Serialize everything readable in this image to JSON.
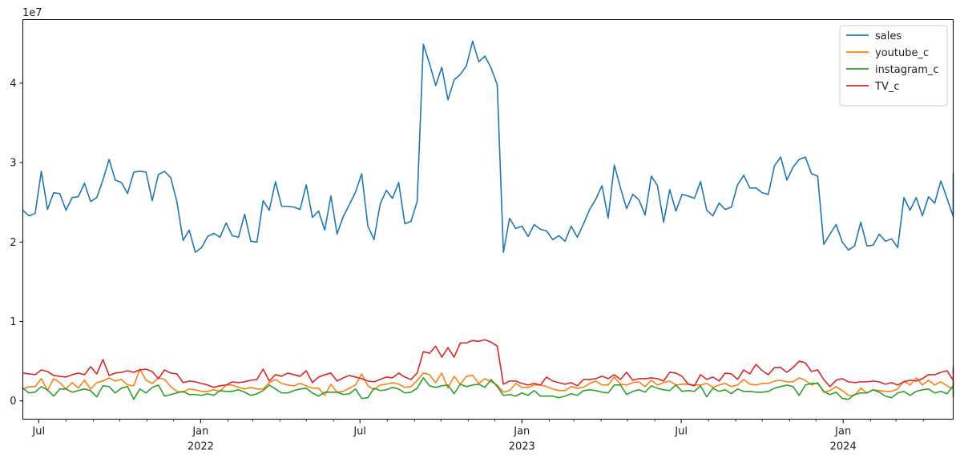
{
  "chart_data": {
    "type": "line",
    "title": "",
    "xlabel": "",
    "ylabel": "",
    "y_offset_text": "1e7",
    "ylim": [
      -2300000,
      48000000
    ],
    "xlim": [
      "2021-06-13",
      "2024-05-05"
    ],
    "y_ticks": [
      {
        "value": 0,
        "label": "0"
      },
      {
        "value": 10000000,
        "label": "1"
      },
      {
        "value": 20000000,
        "label": "2"
      },
      {
        "value": 30000000,
        "label": "3"
      },
      {
        "value": 40000000,
        "label": "4"
      }
    ],
    "x_major_ticks": [
      {
        "date": "2021-07-01",
        "label": "Jul",
        "year": ""
      },
      {
        "date": "2022-01-01",
        "label": "Jan",
        "year": "2022"
      },
      {
        "date": "2022-07-01",
        "label": "Jul",
        "year": ""
      },
      {
        "date": "2023-01-01",
        "label": "Jan",
        "year": "2023"
      },
      {
        "date": "2023-07-01",
        "label": "Jul",
        "year": ""
      },
      {
        "date": "2024-01-01",
        "label": "Jan",
        "year": "2024"
      }
    ],
    "x_minor_ticks": [
      "2021-08-01",
      "2021-09-01",
      "2021-10-01",
      "2021-11-01",
      "2021-12-01",
      "2022-02-01",
      "2022-03-01",
      "2022-04-01",
      "2022-05-01",
      "2022-06-01",
      "2022-08-01",
      "2022-09-01",
      "2022-10-01",
      "2022-11-01",
      "2022-12-01",
      "2023-02-01",
      "2023-03-01",
      "2023-04-01",
      "2023-05-01",
      "2023-06-01",
      "2023-08-01",
      "2023-09-01",
      "2023-10-01",
      "2023-11-01",
      "2023-12-01",
      "2024-02-01",
      "2024-03-01",
      "2024-04-01"
    ],
    "grid": false,
    "legend_position": "top-right",
    "x_start": "2021-06-13",
    "x_freq": "weekly",
    "series": [
      {
        "name": "sales",
        "color": "#1f77b4",
        "values": [
          24.0,
          23.3,
          23.6,
          28.9,
          24.1,
          26.2,
          26.1,
          24.0,
          25.6,
          25.7,
          27.4,
          25.1,
          25.6,
          27.8,
          30.4,
          27.8,
          27.5,
          26.1,
          28.8,
          28.9,
          28.8,
          25.2,
          28.5,
          28.9,
          28.1,
          25.1,
          20.2,
          21.5,
          18.7,
          19.3,
          20.7,
          21.1,
          20.6,
          22.4,
          20.8,
          20.6,
          23.5,
          20.1,
          20.0,
          25.2,
          24.0,
          27.6,
          24.5,
          24.5,
          24.4,
          24.1,
          27.2,
          23.1,
          23.9,
          21.5,
          25.8,
          21.0,
          23.2,
          24.7,
          26.3,
          28.6,
          22.0,
          20.3,
          24.8,
          26.5,
          25.5,
          27.5,
          22.3,
          22.6,
          25.1,
          44.9,
          42.5,
          39.7,
          42.0,
          37.9,
          40.4,
          41.1,
          42.2,
          45.3,
          42.7,
          43.4,
          41.9,
          39.8,
          18.7,
          23.0,
          21.7,
          22.0,
          20.7,
          22.2,
          21.6,
          21.4,
          20.3,
          20.8,
          20.1,
          22.0,
          20.6,
          22.3,
          24.1,
          25.4,
          27.1,
          23.0,
          29.7,
          26.8,
          24.2,
          26.0,
          25.3,
          23.4,
          28.3,
          27.1,
          22.5,
          26.6,
          23.9,
          26.0,
          25.8,
          25.5,
          27.6,
          24.0,
          23.3,
          24.9,
          24.1,
          24.4,
          27.2,
          28.4,
          26.8,
          26.8,
          26.2,
          26.0,
          29.6,
          30.7,
          27.8,
          29.4,
          30.4,
          30.7,
          28.6,
          28.3,
          19.7,
          21.0,
          22.2,
          20.0,
          19.0,
          19.5,
          22.5,
          19.5,
          19.6,
          21.0,
          20.1,
          20.4,
          19.3,
          25.6,
          24.0,
          25.6,
          23.3,
          25.7,
          24.9,
          27.7,
          25.5,
          23.2,
          23.5,
          23.2,
          28.6,
          27.5
        ]
      },
      {
        "name": "youtube_c",
        "color": "#ff7f0e",
        "values": [
          1.5,
          1.8,
          1.8,
          2.8,
          1.3,
          2.8,
          2.3,
          1.5,
          2.3,
          1.6,
          2.6,
          1.5,
          2.3,
          2.5,
          2.9,
          2.5,
          2.7,
          2.0,
          1.9,
          4.0,
          2.6,
          2.2,
          2.9,
          2.7,
          1.8,
          1.2,
          1.1,
          1.5,
          1.4,
          1.2,
          1.2,
          1.4,
          1.2,
          2.0,
          2.0,
          1.7,
          1.5,
          1.7,
          1.5,
          1.5,
          2.3,
          2.7,
          2.2,
          2.0,
          1.9,
          2.2,
          1.9,
          1.6,
          1.6,
          0.7,
          2.1,
          1.1,
          1.2,
          1.6,
          2.0,
          3.4,
          1.9,
          1.4,
          2.0,
          2.1,
          2.3,
          2.1,
          1.7,
          1.8,
          2.6,
          3.5,
          3.3,
          2.3,
          3.5,
          1.6,
          3.1,
          2.1,
          3.1,
          3.2,
          2.2,
          2.8,
          2.4,
          2.0,
          1.1,
          1.3,
          2.2,
          1.7,
          1.7,
          2.0,
          2.0,
          1.8,
          1.5,
          1.3,
          1.3,
          1.8,
          1.6,
          1.7,
          2.2,
          2.5,
          2.0,
          2.0,
          3.0,
          2.1,
          2.0,
          2.3,
          2.4,
          1.8,
          2.6,
          2.0,
          2.3,
          2.5,
          2.0,
          2.1,
          2.1,
          2.0,
          2.0,
          2.2,
          1.7,
          2.0,
          2.2,
          1.8,
          2.0,
          2.7,
          2.1,
          2.0,
          2.2,
          2.2,
          2.5,
          2.6,
          2.4,
          2.4,
          2.9,
          2.6,
          2.0,
          2.3,
          1.1,
          1.3,
          1.8,
          1.3,
          0.7,
          0.7,
          1.6,
          1.0,
          1.4,
          1.3,
          1.2,
          1.2,
          1.5,
          2.5,
          2.0,
          2.9,
          2.0,
          2.6,
          2.0,
          2.4,
          1.9,
          1.5,
          2.0,
          1.8,
          2.0,
          2.1
        ]
      },
      {
        "name": "instagram_c",
        "color": "#2ca02c",
        "values": [
          1.6,
          1.0,
          1.1,
          1.8,
          1.4,
          0.6,
          1.5,
          1.5,
          1.1,
          1.3,
          1.5,
          1.3,
          0.5,
          1.9,
          1.8,
          1.0,
          1.6,
          1.8,
          0.2,
          1.5,
          1.0,
          1.7,
          2.0,
          0.6,
          0.8,
          1.0,
          1.2,
          0.8,
          0.8,
          0.7,
          0.9,
          0.7,
          1.3,
          1.2,
          1.2,
          1.4,
          1.1,
          0.7,
          0.9,
          1.3,
          2.0,
          1.5,
          1.0,
          1.0,
          1.3,
          1.5,
          1.6,
          1.0,
          0.6,
          1.1,
          1.1,
          1.1,
          0.8,
          0.9,
          1.5,
          0.3,
          0.4,
          1.6,
          1.3,
          1.4,
          1.7,
          1.5,
          1.0,
          1.1,
          1.6,
          2.9,
          1.9,
          1.7,
          1.9,
          2.0,
          0.9,
          2.1,
          1.8,
          2.0,
          2.1,
          1.7,
          2.7,
          1.8,
          0.7,
          0.8,
          0.6,
          1.0,
          0.7,
          1.3,
          0.6,
          0.6,
          0.6,
          0.4,
          0.6,
          0.9,
          0.7,
          1.3,
          1.4,
          1.3,
          1.1,
          1.0,
          2.0,
          2.0,
          0.8,
          1.2,
          1.4,
          1.1,
          1.9,
          1.6,
          1.4,
          1.3,
          2.0,
          1.2,
          1.3,
          1.2,
          1.9,
          0.5,
          1.6,
          1.2,
          1.4,
          0.9,
          1.5,
          1.2,
          1.2,
          1.1,
          1.1,
          1.2,
          1.6,
          1.8,
          2.0,
          1.8,
          0.7,
          2.0,
          2.2,
          2.2,
          1.2,
          0.8,
          1.1,
          0.3,
          0.2,
          0.8,
          1.0,
          1.0,
          1.4,
          1.1,
          0.6,
          0.4,
          1.0,
          1.2,
          0.7,
          1.2,
          1.4,
          1.5,
          1.0,
          1.2,
          0.9,
          1.9,
          1.0,
          0.5,
          1.6,
          0.9,
          2.2,
          2.1
        ]
      },
      {
        "name": "TV_c",
        "color": "#d62728",
        "values": [
          3.5,
          3.4,
          3.3,
          3.9,
          3.7,
          3.2,
          3.1,
          3.0,
          3.3,
          3.5,
          3.3,
          4.3,
          3.4,
          5.2,
          3.2,
          3.5,
          3.6,
          3.8,
          3.6,
          3.9,
          4.0,
          3.7,
          2.8,
          3.9,
          3.5,
          3.4,
          2.3,
          2.5,
          2.4,
          2.2,
          2.0,
          1.7,
          1.9,
          2.0,
          2.4,
          2.3,
          2.4,
          2.6,
          2.7,
          4.0,
          2.5,
          3.3,
          3.1,
          3.5,
          3.3,
          3.1,
          3.8,
          2.3,
          3.0,
          3.3,
          3.5,
          2.5,
          2.9,
          3.2,
          3.0,
          2.8,
          2.5,
          2.4,
          2.7,
          3.0,
          2.9,
          3.5,
          3.0,
          2.7,
          3.5,
          6.2,
          6.0,
          6.9,
          5.5,
          6.7,
          5.5,
          7.3,
          7.3,
          7.6,
          7.5,
          7.7,
          7.4,
          6.9,
          2.1,
          2.5,
          2.5,
          2.2,
          2.0,
          2.2,
          2.0,
          3.0,
          2.5,
          2.3,
          2.1,
          2.3,
          1.9,
          2.7,
          2.7,
          2.8,
          3.1,
          2.8,
          3.3,
          2.7,
          3.6,
          2.6,
          2.8,
          2.8,
          2.9,
          2.8,
          2.5,
          3.6,
          3.5,
          3.1,
          2.1,
          1.9,
          3.3,
          2.7,
          3.0,
          2.5,
          3.5,
          3.4,
          2.7,
          3.9,
          3.4,
          4.6,
          3.8,
          3.3,
          4.2,
          4.2,
          3.6,
          4.2,
          5.0,
          4.8,
          3.7,
          3.9,
          2.7,
          1.8,
          2.6,
          2.8,
          2.4,
          2.3,
          2.4,
          2.4,
          2.5,
          2.4,
          2.1,
          2.3,
          2.0,
          2.4,
          2.6,
          2.5,
          2.8,
          3.3,
          3.3,
          3.6,
          3.8,
          2.6,
          1.9,
          3.4,
          4.3,
          3.3
        ]
      }
    ]
  }
}
